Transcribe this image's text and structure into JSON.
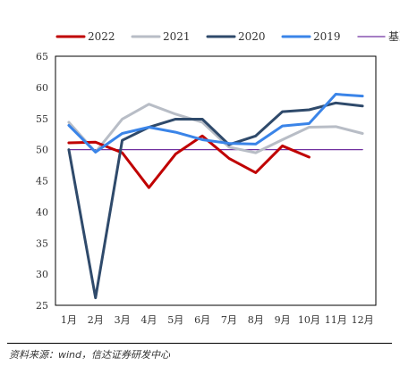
{
  "source": "资料来源：wind，信达证券研发中心",
  "chart_data": {
    "type": "line",
    "categories": [
      "1月",
      "2月",
      "3月",
      "4月",
      "5月",
      "6月",
      "7月",
      "8月",
      "9月",
      "10月",
      "11月",
      "12月"
    ],
    "ylim": [
      25,
      65
    ],
    "yticks": [
      25,
      30,
      35,
      40,
      45,
      50,
      55,
      60,
      65
    ],
    "legend_position": "top",
    "grid": false,
    "series": [
      {
        "name": "2022",
        "color": "#c00000",
        "width": 3,
        "values": [
          51.1,
          51.2,
          49.5,
          43.9,
          49.3,
          52.2,
          48.6,
          46.3,
          50.6,
          48.8,
          null,
          null
        ]
      },
      {
        "name": "2021",
        "color": "#b8bdc6",
        "width": 3,
        "values": [
          54.4,
          49.6,
          54.9,
          57.3,
          55.7,
          54.4,
          50.4,
          49.5,
          51.6,
          53.6,
          53.7,
          52.6
        ]
      },
      {
        "name": "2020",
        "color": "#2f4a6b",
        "width": 3,
        "values": [
          50.0,
          26.2,
          51.5,
          53.6,
          54.9,
          54.9,
          50.8,
          52.2,
          56.1,
          56.4,
          57.5,
          57.0
        ]
      },
      {
        "name": "2019",
        "color": "#3a84e8",
        "width": 3,
        "values": [
          53.9,
          49.6,
          52.6,
          53.6,
          52.8,
          51.6,
          51.0,
          50.9,
          53.8,
          54.2,
          58.9,
          58.6
        ]
      },
      {
        "name": "基准",
        "color": "#7030a0",
        "width": 1.3,
        "values": [
          50,
          50,
          50,
          50,
          50,
          50,
          50,
          50,
          50,
          50,
          50,
          50
        ]
      }
    ]
  }
}
